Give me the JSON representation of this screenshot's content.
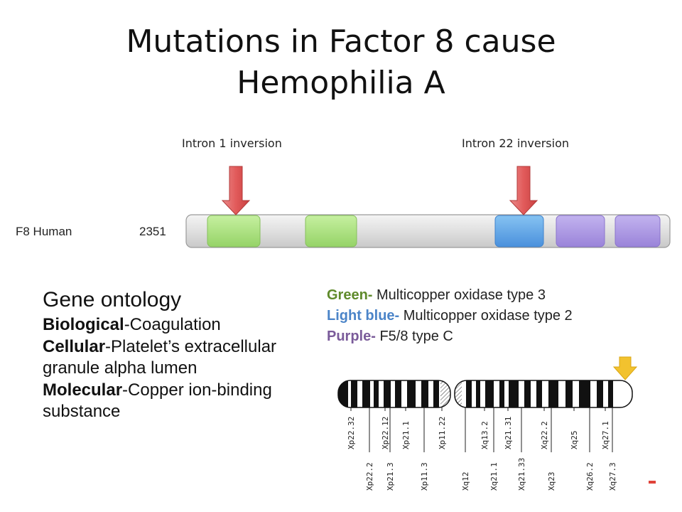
{
  "title": {
    "line1": "Mutations in Factor 8 cause",
    "line2": "Hemophilia A"
  },
  "arrows": {
    "left_label": "Intron 1 inversion",
    "right_label": "Intron 22 inversion"
  },
  "gene": {
    "name": "F8 Human",
    "length": "2351"
  },
  "domains_colors": {
    "green": "#a6e07a",
    "blue": "#5aa3e6",
    "purple": "#a58fde"
  },
  "ontology": {
    "heading": "Gene ontology",
    "items": [
      {
        "term": "Biological",
        "text": "-Coagulation"
      },
      {
        "term": "Cellular",
        "text": "-Platelet’s extracellular  granule alpha lumen"
      },
      {
        "term": "Molecular",
        "text": "-Copper ion-binding substance"
      }
    ]
  },
  "legend": [
    {
      "color_name": "Green-",
      "desc": " Multicopper oxidase type 3",
      "color": "#5f8a2b"
    },
    {
      "color_name": "Light blue-",
      "desc": " Multicopper oxidase type 2",
      "color": "#4b84c8"
    },
    {
      "color_name": "Purple-",
      "desc": " F5/8 type C",
      "color": "#7a5b9a"
    }
  ],
  "chromosome": {
    "bands_top": [
      "Xp22.32",
      "Xp22.12",
      "Xp21.1",
      "Xp11.22",
      "Xq13.2",
      "Xq21.31",
      "Xq22.2",
      "Xq25",
      "Xq27.1"
    ],
    "bands_bottom": [
      "Xp22.2",
      "Xp21.3",
      "Xp11.3",
      "Xq12",
      "Xq21.1",
      "Xq21.33",
      "Xq23",
      "Xq26.2",
      "Xq27.3"
    ]
  }
}
